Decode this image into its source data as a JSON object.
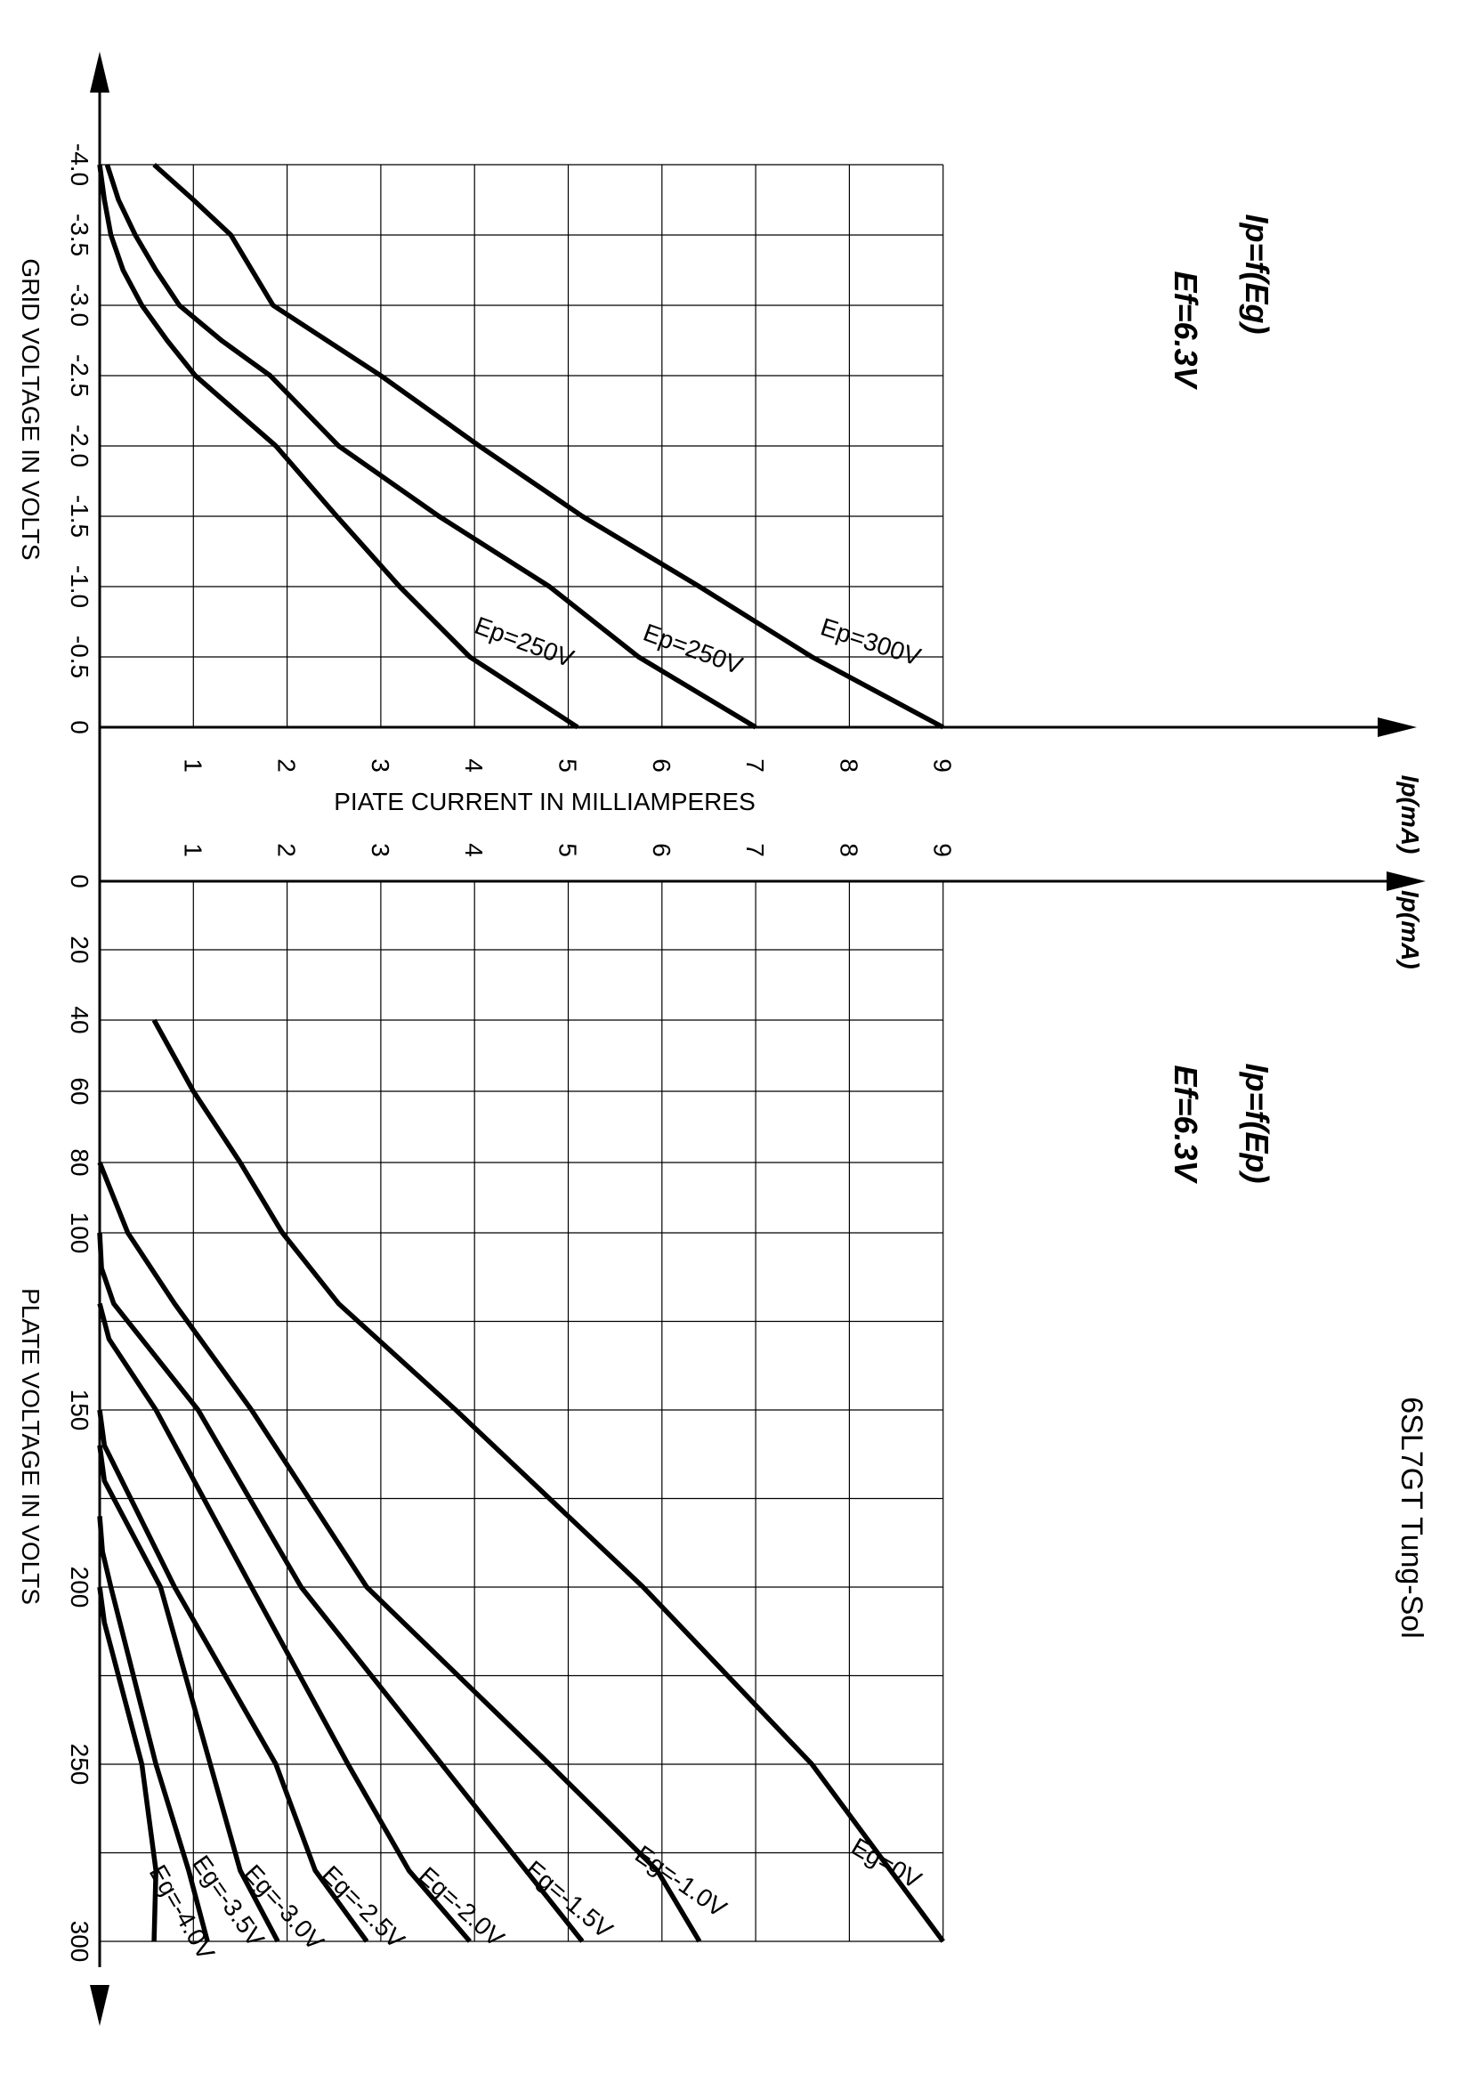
{
  "sheet_title": "6SL7GT Tung-Sol",
  "chart_data": [
    {
      "type": "line",
      "title_lines": [
        "Ip=f(Eg)",
        "Ef=6.3V"
      ],
      "xlabel": "GRID VOLTAGE IN VOLTS",
      "ylabel": "PIATE CURRENT IN MILLIAMPERES",
      "ylabel_axis": "Ip(mA)",
      "x_ticks": [
        "-4.0",
        "-3.5",
        "-3.0",
        "-2.5",
        "-2.0",
        "-1.5",
        "-1.0",
        "-0.5",
        "0"
      ],
      "y_ticks": [
        "1",
        "2",
        "3",
        "4",
        "5",
        "6",
        "7",
        "8",
        "9"
      ],
      "xlim": [
        -4.0,
        0
      ],
      "ylim": [
        0,
        9
      ],
      "grid": true,
      "series": [
        {
          "name": "Ep=250V",
          "x": [
            -4.0,
            -3.9,
            -3.75,
            -3.5,
            -3.25,
            -3.0,
            -2.75,
            -2.5,
            -2.0,
            -1.5,
            -1.0,
            -0.5,
            0
          ],
          "y": [
            0.0,
            0.02,
            0.05,
            0.12,
            0.25,
            0.45,
            0.72,
            1.02,
            1.88,
            2.53,
            3.2,
            3.95,
            5.1
          ]
        },
        {
          "name": "Ep=250V",
          "x": [
            -4.0,
            -3.75,
            -3.5,
            -3.25,
            -3.0,
            -2.75,
            -2.5,
            -2.0,
            -1.5,
            -1.0,
            -0.5,
            0
          ],
          "y": [
            0.08,
            0.2,
            0.38,
            0.6,
            0.85,
            1.3,
            1.82,
            2.55,
            3.62,
            4.8,
            5.75,
            7.0
          ]
        },
        {
          "name": "Ep=300V",
          "x": [
            -4.0,
            -3.75,
            -3.5,
            -3.0,
            -2.5,
            -2.0,
            -1.5,
            -1.0,
            -0.5,
            0
          ],
          "y": [
            0.58,
            1.0,
            1.4,
            1.85,
            3.0,
            4.05,
            5.15,
            6.4,
            7.6,
            9.0
          ]
        }
      ]
    },
    {
      "type": "line",
      "title_lines": [
        "Ip=f(Ep)",
        "Ef=6.3V"
      ],
      "xlabel": "PLATE VOLTAGE IN VOLTS",
      "ylabel_axis": "Ip(mA)",
      "x_ticks": [
        "0",
        "20",
        "40",
        "60",
        "80",
        "100",
        "150",
        "200",
        "250",
        "300"
      ],
      "x_tick_values": [
        0,
        20,
        40,
        60,
        80,
        100,
        150,
        200,
        250,
        300
      ],
      "y_ticks": [
        "1",
        "2",
        "3",
        "4",
        "5",
        "6",
        "7",
        "8",
        "9"
      ],
      "xlim": [
        0,
        300
      ],
      "ylim": [
        0,
        9
      ],
      "grid": true,
      "series": [
        {
          "name": "Eg=0V",
          "x": [
            40,
            60,
            80,
            100,
            120,
            150,
            200,
            250,
            300
          ],
          "y": [
            0.58,
            1.0,
            1.5,
            1.95,
            2.55,
            3.8,
            5.8,
            7.6,
            9.0
          ]
        },
        {
          "name": "Eg=-1.0V",
          "x": [
            80,
            100,
            120,
            150,
            200,
            250,
            280,
            300
          ],
          "y": [
            0.0,
            0.3,
            0.8,
            1.62,
            2.85,
            4.8,
            5.95,
            6.4
          ]
        },
        {
          "name": "Eg=-1.5V",
          "x": [
            100,
            110,
            120,
            150,
            200,
            250,
            280,
            300
          ],
          "y": [
            0.0,
            0.02,
            0.15,
            1.05,
            2.15,
            3.65,
            4.55,
            5.15
          ]
        },
        {
          "name": "Eg=-2.0V",
          "x": [
            120,
            130,
            150,
            200,
            250,
            280,
            300
          ],
          "y": [
            0.0,
            0.1,
            0.6,
            1.62,
            2.65,
            3.3,
            3.95
          ]
        },
        {
          "name": "Eg=-2.5V",
          "x": [
            150,
            160,
            200,
            250,
            280,
            300
          ],
          "y": [
            0.0,
            0.05,
            0.8,
            1.88,
            2.3,
            2.85
          ]
        },
        {
          "name": "Eg=-3.0V",
          "x": [
            160,
            170,
            200,
            250,
            280,
            300
          ],
          "y": [
            0.0,
            0.05,
            0.65,
            1.18,
            1.5,
            1.9
          ]
        },
        {
          "name": "Eg=-3.5V",
          "x": [
            180,
            190,
            200,
            250,
            280,
            300
          ],
          "y": [
            0.0,
            0.03,
            0.12,
            0.6,
            0.95,
            1.15
          ]
        },
        {
          "name": "Eg=-4.0V",
          "x": [
            200,
            210,
            220,
            250,
            280,
            300
          ],
          "y": [
            0.0,
            0.05,
            0.15,
            0.45,
            0.6,
            0.58
          ]
        }
      ]
    }
  ]
}
